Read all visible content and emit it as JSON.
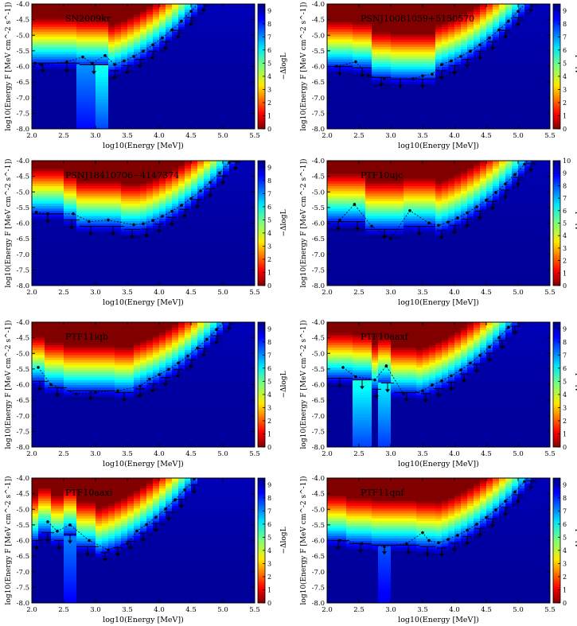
{
  "figure": {
    "xlabel": "log10(Energy [MeV])",
    "ylabel": "log10(Energy F [MeV cm^-2 s^-1])",
    "colorbar_label": "−ΔlogL"
  },
  "chart_data": [
    {
      "type": "heatmap",
      "title": "SN2009kr",
      "xlim": [
        2.0,
        5.5
      ],
      "ylim": [
        -8.0,
        -4.0
      ],
      "xticks": [
        "2.0",
        "2.5",
        "3.0",
        "3.5",
        "4.0",
        "4.5",
        "5.0",
        "5.5"
      ],
      "yticks": [
        "-4.0",
        "-4.5",
        "-5.0",
        "-5.5",
        "-6.0",
        "-6.5",
        "-7.0",
        "-7.5",
        "-8.0"
      ],
      "colorbar_ticks": [
        "0",
        "1",
        "2",
        "3",
        "4",
        "5",
        "6",
        "7",
        "8",
        "9"
      ],
      "colorbar_max": 9.5,
      "bins_x": [
        2.0,
        2.35,
        2.75,
        3.2
      ],
      "ul_top": [
        -5.6,
        -5.6,
        -5.65,
        -5.85
      ],
      "hot": [
        {
          "x": [
            2.7,
            2.95
          ],
          "level": 2.2
        },
        {
          "x": [
            3.05,
            3.2
          ],
          "level": 3.3
        }
      ],
      "points": [
        {
          "x": 2.05,
          "y": -5.9
        },
        {
          "x": 2.15,
          "y": -5.95
        },
        {
          "x": 2.55,
          "y": -5.85
        },
        {
          "x": 2.8,
          "y": -5.7
        },
        {
          "x": 2.95,
          "y": -5.9
        },
        {
          "x": 3.15,
          "y": -5.65
        }
      ]
    },
    {
      "type": "heatmap",
      "title": "PSNJ10081059+5150570",
      "xlim": [
        2.0,
        5.5
      ],
      "ylim": [
        -8.0,
        -4.0
      ],
      "xticks": [
        "2.0",
        "2.5",
        "3.0",
        "3.5",
        "4.0",
        "4.5",
        "5.0",
        "5.5"
      ],
      "yticks": [
        "-4.0",
        "-4.5",
        "-5.0",
        "-5.5",
        "-6.0",
        "-6.5",
        "-7.0",
        "-7.5",
        "-8.0"
      ],
      "colorbar_ticks": [
        "0",
        "1",
        "2",
        "3",
        "4",
        "5",
        "6",
        "7",
        "8",
        "9"
      ],
      "colorbar_max": 9.5,
      "bins_x": [
        2.0,
        2.4,
        2.7,
        3.0,
        3.3,
        3.7
      ],
      "ul_top": [
        -5.7,
        -5.75,
        -6.05,
        -6.1,
        -6.1,
        -5.85
      ],
      "hot": [],
      "points": [
        {
          "x": 2.15,
          "y": -6.0
        },
        {
          "x": 2.45,
          "y": -5.85
        },
        {
          "x": 2.65,
          "y": -6.3
        },
        {
          "x": 2.9,
          "y": -6.4
        },
        {
          "x": 3.35,
          "y": -6.4
        },
        {
          "x": 3.5,
          "y": -6.3
        }
      ]
    },
    {
      "type": "heatmap",
      "title": "PSNJ18410706−4147374",
      "xlim": [
        2.0,
        5.5
      ],
      "ylim": [
        -8.0,
        -4.0
      ],
      "xticks": [
        "2.0",
        "2.5",
        "3.0",
        "3.5",
        "4.0",
        "4.5",
        "5.0",
        "5.5"
      ],
      "yticks": [
        "-4.0",
        "-4.5",
        "-5.0",
        "-5.5",
        "-6.0",
        "-6.5",
        "-7.0",
        "-7.5",
        "-8.0"
      ],
      "colorbar_ticks": [
        "0",
        "1",
        "2",
        "3",
        "4",
        "5",
        "6",
        "7",
        "8",
        "9"
      ],
      "colorbar_max": 9.5,
      "bins_x": [
        2.0,
        2.5,
        2.75,
        3.1,
        3.45,
        3.7
      ],
      "ul_top": [
        -5.4,
        -5.6,
        -5.8,
        -5.8,
        -5.9,
        -5.9
      ],
      "hot": [],
      "points": [
        {
          "x": 2.07,
          "y": -5.65
        },
        {
          "x": 2.25,
          "y": -5.7
        },
        {
          "x": 2.65,
          "y": -5.7
        },
        {
          "x": 2.9,
          "y": -5.95
        },
        {
          "x": 3.2,
          "y": -5.9
        },
        {
          "x": 3.6,
          "y": -6.05
        }
      ]
    },
    {
      "type": "heatmap",
      "title": "PTF10ujc",
      "xlim": [
        2.0,
        5.5
      ],
      "ylim": [
        -8.0,
        -4.0
      ],
      "xticks": [
        "2.0",
        "2.5",
        "3.0",
        "3.5",
        "4.0",
        "4.5",
        "5.0",
        "5.5"
      ],
      "yticks": [
        "-4.0",
        "-4.5",
        "-5.0",
        "-5.5",
        "-6.0",
        "-6.5",
        "-7.0",
        "-7.5",
        "-8.0"
      ],
      "colorbar_ticks": [
        "0",
        "1",
        "2",
        "3",
        "4",
        "5",
        "6",
        "7",
        "8",
        "9",
        "10"
      ],
      "colorbar_max": 10,
      "bins_x": [
        2.0,
        2.35,
        2.6,
        3.2,
        3.7
      ],
      "ul_top": [
        -5.65,
        -5.65,
        -5.9,
        -5.8,
        -5.95
      ],
      "hot": [],
      "points": [
        {
          "x": 2.2,
          "y": -5.9
        },
        {
          "x": 2.43,
          "y": -5.4
        },
        {
          "x": 2.7,
          "y": -6.1
        },
        {
          "x": 3.0,
          "y": -6.5
        },
        {
          "x": 3.3,
          "y": -5.6
        },
        {
          "x": 3.6,
          "y": -6.0
        }
      ]
    },
    {
      "type": "heatmap",
      "title": "PTF11iqb",
      "xlim": [
        2.0,
        5.5
      ],
      "ylim": [
        -8.0,
        -4.0
      ],
      "xticks": [
        "2.0",
        "2.5",
        "3.0",
        "3.5",
        "4.0",
        "4.5",
        "5.0",
        "5.5"
      ],
      "yticks": [
        "-4.0",
        "-4.5",
        "-5.0",
        "-5.5",
        "-6.0",
        "-6.5",
        "-7.0",
        "-7.5",
        "-8.0"
      ],
      "colorbar_ticks": [
        "0",
        "1",
        "2",
        "3",
        "4",
        "5",
        "6",
        "7",
        "8",
        "9"
      ],
      "colorbar_max": 9.5,
      "bins_x": [
        2.0,
        2.25,
        2.55,
        3.3,
        3.6
      ],
      "ul_top": [
        -5.6,
        -5.8,
        -5.9,
        -5.95,
        -5.85
      ],
      "hot": [],
      "points": [
        {
          "x": 2.1,
          "y": -5.45
        },
        {
          "x": 2.3,
          "y": -6.0
        },
        {
          "x": 2.7,
          "y": -6.3
        },
        {
          "x": 3.0,
          "y": -6.25
        },
        {
          "x": 3.35,
          "y": -6.2
        },
        {
          "x": 3.7,
          "y": -6.05
        }
      ]
    },
    {
      "type": "heatmap",
      "title": "PTF10aaxf",
      "xlim": [
        2.0,
        5.5
      ],
      "ylim": [
        -8.0,
        -4.0
      ],
      "xticks": [
        "2.0",
        "2.5",
        "3.0",
        "3.5",
        "4.0",
        "4.5",
        "5.0",
        "5.5"
      ],
      "yticks": [
        "-4.0",
        "-4.5",
        "-5.0",
        "-5.5",
        "-6.0",
        "-6.5",
        "-7.0",
        "-7.5",
        "-8.0"
      ],
      "colorbar_ticks": [
        "0",
        "1",
        "2",
        "3",
        "4",
        "5",
        "6",
        "7",
        "8",
        "9"
      ],
      "colorbar_max": 9.5,
      "bins_x": [
        2.0,
        2.4,
        2.7,
        2.85,
        3.05,
        3.45
      ],
      "ul_top": [
        -5.5,
        -5.55,
        -5.85,
        -5.65,
        -5.95,
        -6.0
      ],
      "hot": [
        {
          "x": [
            2.4,
            2.7
          ],
          "level": 3.2
        },
        {
          "x": [
            2.85,
            3.0
          ],
          "level": 3.0
        }
      ],
      "points": [
        {
          "x": 2.25,
          "y": -5.45
        },
        {
          "x": 2.45,
          "y": -5.75
        },
        {
          "x": 2.75,
          "y": -5.85
        },
        {
          "x": 2.93,
          "y": -5.4
        },
        {
          "x": 3.2,
          "y": -6.3
        },
        {
          "x": 3.5,
          "y": -6.2
        }
      ]
    },
    {
      "type": "heatmap",
      "title": "PTF10aaxi",
      "xlim": [
        2.0,
        5.5
      ],
      "ylim": [
        -8.0,
        -4.0
      ],
      "xticks": [
        "2.0",
        "2.5",
        "3.0",
        "3.5",
        "4.0",
        "4.5",
        "5.0",
        "5.5"
      ],
      "yticks": [
        "-4.0",
        "-4.5",
        "-5.0",
        "-5.5",
        "-6.0",
        "-6.5",
        "-7.0",
        "-7.5",
        "-8.0"
      ],
      "colorbar_ticks": [
        "0",
        "1",
        "2",
        "3",
        "4",
        "5",
        "6",
        "7",
        "8",
        "9"
      ],
      "colorbar_max": 9.5,
      "bins_x": [
        2.0,
        2.15,
        2.35,
        2.5,
        2.7,
        3.05
      ],
      "ul_top": [
        -5.7,
        -5.45,
        -5.7,
        -5.5,
        -5.9,
        -6.1
      ],
      "hot": [
        {
          "x": [
            2.5,
            2.7
          ],
          "level": 2.0
        }
      ],
      "points": [
        {
          "x": 2.25,
          "y": -5.4
        },
        {
          "x": 2.4,
          "y": -5.7
        },
        {
          "x": 2.6,
          "y": -5.5
        },
        {
          "x": 2.9,
          "y": -6.0
        },
        {
          "x": 3.2,
          "y": -6.3
        },
        {
          "x": 3.5,
          "y": -6.1
        }
      ]
    },
    {
      "type": "heatmap",
      "title": "PTF11qnf",
      "xlim": [
        2.0,
        5.5
      ],
      "ylim": [
        -8.0,
        -4.0
      ],
      "xticks": [
        "2.0",
        "2.5",
        "3.0",
        "3.5",
        "4.0",
        "4.5",
        "5.0",
        "5.5"
      ],
      "yticks": [
        "-4.0",
        "-4.5",
        "-5.0",
        "-5.5",
        "-6.0",
        "-6.5",
        "-7.0",
        "-7.5",
        "-8.0"
      ],
      "colorbar_ticks": [
        "0",
        "1",
        "2",
        "3",
        "4",
        "5",
        "6",
        "7",
        "8",
        "9"
      ],
      "colorbar_max": 9.5,
      "bins_x": [
        2.0,
        2.35,
        2.7,
        3.1,
        3.45,
        3.7
      ],
      "ul_top": [
        -5.7,
        -5.8,
        -5.85,
        -5.85,
        -5.9,
        -5.95
      ],
      "hot": [
        {
          "x": [
            2.85,
            3.0
          ],
          "level": 1.8
        }
      ],
      "points": [
        {
          "x": 2.2,
          "y": -6.0
        },
        {
          "x": 2.55,
          "y": -6.1
        },
        {
          "x": 2.9,
          "y": -6.2
        },
        {
          "x": 3.25,
          "y": -6.1
        },
        {
          "x": 3.5,
          "y": -5.75
        },
        {
          "x": 3.6,
          "y": -6.0
        }
      ]
    }
  ]
}
